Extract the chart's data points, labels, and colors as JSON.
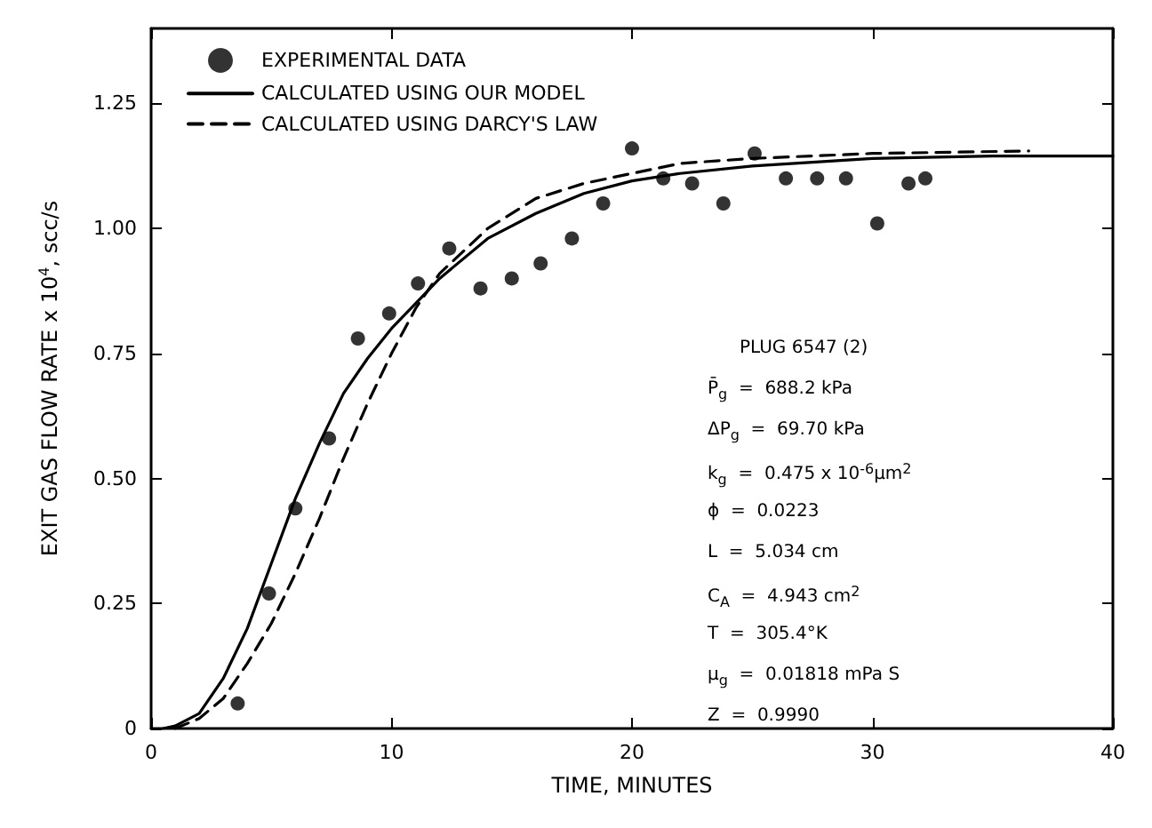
{
  "chart_data": {
    "type": "scatter",
    "xlabel": "TIME, MINUTES",
    "ylabel": "EXIT GAS FLOW RATE x 10$^{4}$, scc/s",
    "xlim": [
      0,
      40
    ],
    "xticks": [
      0,
      10,
      20,
      30,
      40
    ],
    "ylim": [
      0,
      1.4
    ],
    "yticks": [
      0,
      0.25,
      {
        "value": 0.5,
        "label": "0.50"
      },
      0.75,
      {
        "value": 1,
        "label": "1.00"
      },
      1.25
    ],
    "grid": false,
    "legend": "top left",
    "series": [
      {
        "name": "EXPERIMENTAL DATA",
        "type": "scatter",
        "marker": "circle",
        "color": "#000000",
        "x": [
          3.6,
          4.9,
          6.0,
          7.4,
          8.6,
          9.9,
          11.1,
          12.4,
          13.7,
          15.0,
          16.2,
          17.5,
          18.8,
          20.0,
          21.3,
          22.5,
          23.8,
          25.1,
          26.4,
          27.7,
          28.9,
          30.2,
          31.5,
          32.2
        ],
        "values": [
          0.05,
          0.27,
          0.44,
          0.58,
          0.78,
          0.83,
          0.89,
          0.96,
          0.88,
          0.9,
          0.93,
          0.98,
          1.05,
          1.16,
          1.1,
          1.09,
          1.05,
          1.15,
          1.1,
          1.1,
          1.1,
          1.01,
          1.09,
          1.1
        ]
      },
      {
        "name": "CALCULATED USING OUR MODEL",
        "type": "line",
        "marker": "none",
        "line_style": "solid",
        "color": "#000000",
        "x": [
          0.5,
          1,
          2,
          3,
          4,
          5,
          6,
          7,
          8,
          9,
          10,
          11,
          12,
          14,
          16,
          18,
          20,
          22,
          25,
          30,
          35,
          40
        ],
        "values": [
          0,
          0.005,
          0.03,
          0.1,
          0.2,
          0.33,
          0.46,
          0.57,
          0.67,
          0.74,
          0.8,
          0.85,
          0.9,
          0.98,
          1.03,
          1.07,
          1.095,
          1.11,
          1.125,
          1.14,
          1.145,
          1.145
        ]
      },
      {
        "name": "CALCULATED USING DARCY'S LAW",
        "type": "line",
        "marker": "none",
        "line_style": "dashed",
        "color": "#000000",
        "x": [
          1,
          2,
          3,
          4,
          5,
          6,
          7,
          8,
          9,
          10,
          11,
          12,
          14,
          16,
          18,
          20,
          22,
          25,
          30,
          36.5
        ],
        "values": [
          0,
          0.02,
          0.06,
          0.13,
          0.21,
          0.31,
          0.42,
          0.54,
          0.65,
          0.75,
          0.84,
          0.91,
          1.0,
          1.06,
          1.09,
          1.11,
          1.13,
          1.14,
          1.15,
          1.155
        ]
      }
    ],
    "annotations": [
      "PLUG 6547 (2)",
      "P̄$_{g}$  =  688.2 kPa",
      "ΔP$_{g}$  =  69.70 kPa",
      "k$_{g}$  =  0.475 x 10$^{-6}$μm$^{2}$",
      "ϕ  =  0.0223",
      "L  =  5.034 cm",
      "C$_{A}$  =  4.943 cm$^{2}$",
      "T  =  305.4°K",
      "μ$_{g}$  =  0.01818 mPa S",
      "Z  =  0.9990"
    ]
  }
}
